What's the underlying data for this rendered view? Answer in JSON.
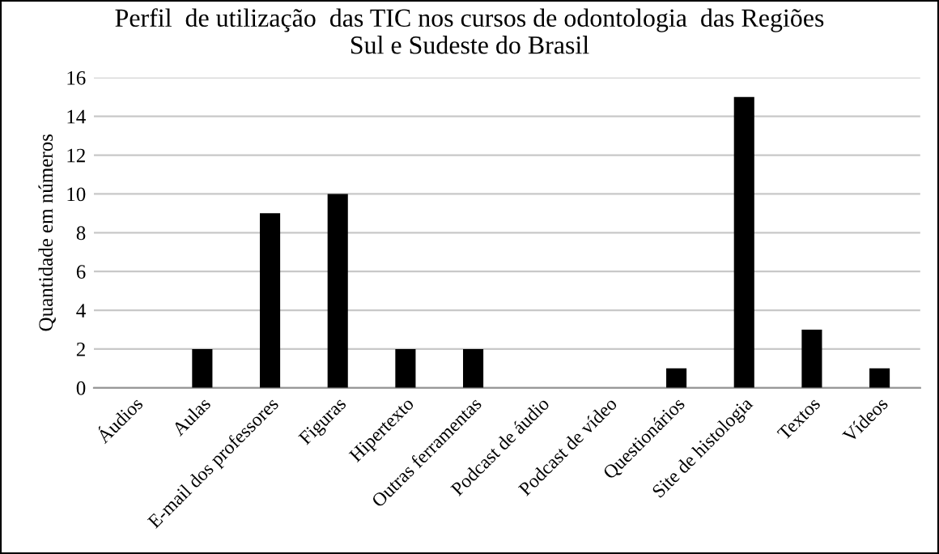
{
  "chart_data": {
    "type": "bar",
    "title": "Perfil  de utilização  das TIC nos cursos de odontologia  das Regiões\nSul e Sudeste do Brasil",
    "ylabel": "Quantidade em números",
    "categories": [
      "Áudios",
      "Aulas",
      "E-mail dos professores",
      "Figuras",
      "Hipertexto",
      "Outras ferramentas",
      "Podcast de áudio",
      "Podcast de vídeo",
      "Questionários",
      "Site de histologia",
      "Textos",
      "Vídeos"
    ],
    "values": [
      0,
      2,
      9,
      10,
      2,
      2,
      0,
      0,
      1,
      15,
      3,
      1
    ],
    "color": "#000000",
    "ylim": [
      0,
      16
    ],
    "yticks": [
      0,
      2,
      4,
      6,
      8,
      10,
      12,
      14,
      16
    ],
    "grid": "y"
  }
}
